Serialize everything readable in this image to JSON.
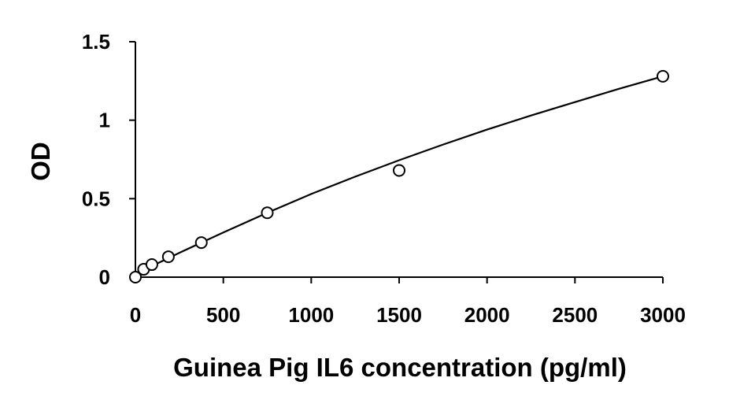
{
  "chart_data": {
    "type": "scatter",
    "title": "",
    "xlabel": "Guinea Pig IL6 concentration (pg/ml)",
    "ylabel": "OD",
    "xlim": [
      0,
      3000
    ],
    "ylim": [
      0,
      1.5
    ],
    "x_ticks": [
      0,
      500,
      1000,
      1500,
      2000,
      2500,
      3000
    ],
    "x_tick_labels": [
      "0",
      "500",
      "1000",
      "1500",
      "2000",
      "2500",
      "3000"
    ],
    "y_ticks": [
      0,
      0.5,
      1,
      1.5
    ],
    "y_tick_labels": [
      "0",
      "0.5",
      "1",
      "1.5"
    ],
    "grid": false,
    "legend": "none",
    "series": [
      {
        "marker": "open-circle",
        "color": "#000000",
        "x": [
          0,
          46.88,
          93.75,
          187.5,
          375,
          750,
          1500,
          3000
        ],
        "y": [
          0.0,
          0.05,
          0.08,
          0.13,
          0.22,
          0.41,
          0.68,
          1.28
        ]
      }
    ],
    "fit_curve": {
      "color": "#000000",
      "x": [
        0,
        250,
        500,
        750,
        1000,
        1250,
        1500,
        1750,
        2000,
        2250,
        2500,
        2750,
        3000
      ],
      "y": [
        0.02,
        0.155,
        0.285,
        0.41,
        0.53,
        0.64,
        0.745,
        0.845,
        0.94,
        1.03,
        1.115,
        1.2,
        1.28
      ]
    }
  }
}
